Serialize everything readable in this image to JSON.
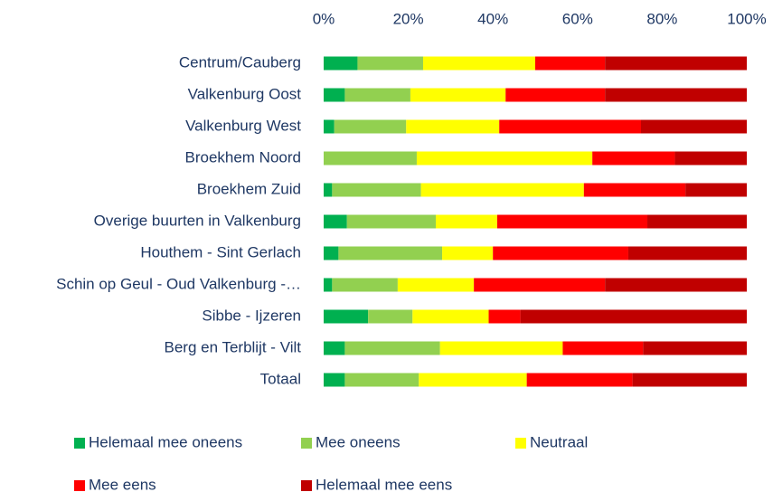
{
  "chart_data": {
    "type": "stacked_bar_horizontal",
    "categories": [
      "Centrum/Cauberg",
      "Valkenburg Oost",
      "Valkenburg West",
      "Broekhem Noord",
      "Broekhem Zuid",
      "Overige buurten in Valkenburg",
      "Houthem - Sint Gerlach",
      "Schin op Geul - Oud Valkenburg -…",
      "Sibbe - Ijzeren",
      "Berg en Terblijt - Vilt",
      "Totaal"
    ],
    "series": [
      {
        "name": "Helemaal mee oneens",
        "color": "#00b050",
        "values": [
          8,
          5,
          2.5,
          0,
          2,
          5.5,
          3.5,
          2,
          10.5,
          5,
          5
        ]
      },
      {
        "name": "Mee oneens",
        "color": "#92d050",
        "values": [
          15.5,
          15.5,
          17,
          22,
          21,
          21,
          24.5,
          15.5,
          10.5,
          22.5,
          17.5
        ]
      },
      {
        "name": "Neutraal",
        "color": "#ffff00",
        "values": [
          26.5,
          22.5,
          22,
          41.5,
          38.5,
          14.5,
          12,
          18,
          18,
          29,
          25.5
        ]
      },
      {
        "name": "Mee eens",
        "color": "#ff0000",
        "values": [
          16.5,
          23.5,
          33.5,
          19.5,
          24,
          35.5,
          32,
          31,
          7.5,
          19,
          25
        ]
      },
      {
        "name": "Helemaal mee eens",
        "color": "#c00000",
        "values": [
          33.5,
          33.5,
          25,
          17,
          14.5,
          23.5,
          28,
          33.5,
          53.5,
          24.5,
          27
        ]
      }
    ],
    "xlim": [
      0,
      100
    ],
    "xticks": [
      {
        "value": 0,
        "label": "0%"
      },
      {
        "value": 20,
        "label": "20%"
      },
      {
        "value": 40,
        "label": "40%"
      },
      {
        "value": 60,
        "label": "60%"
      },
      {
        "value": 80,
        "label": "80%"
      },
      {
        "value": 100,
        "label": "100%"
      }
    ],
    "grid": false,
    "legend": "bottom"
  }
}
